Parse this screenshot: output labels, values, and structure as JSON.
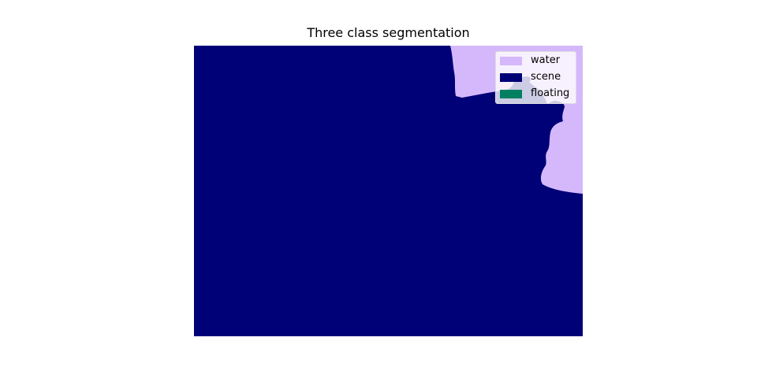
{
  "figure": {
    "title": "Three class segmentation"
  },
  "legend": {
    "items": [
      {
        "label": "water",
        "color": "#d5b8fc"
      },
      {
        "label": "scene",
        "color": "#000077"
      },
      {
        "label": "floating",
        "color": "#008060"
      }
    ]
  },
  "segmentation": {
    "background_class": "scene",
    "classes_present": [
      "scene",
      "water"
    ]
  }
}
